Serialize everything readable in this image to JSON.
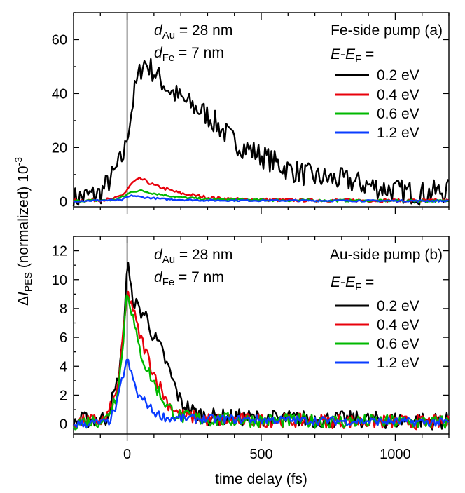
{
  "xlabel": "time delay (fs)",
  "ylabel": {
    "delta": "Δ",
    "italic": "I",
    "sub": "PES",
    "rest": " (normalized) 10",
    "sup": "-3"
  },
  "chart_data": [
    {
      "type": "line",
      "panel": "a",
      "xlim": [
        -200,
        1200
      ],
      "ylim": [
        -2,
        70
      ],
      "xticks": [
        0,
        500,
        1000
      ],
      "xtick_labels": [
        "",
        "",
        ""
      ],
      "yticks": [
        0,
        20,
        40,
        60
      ],
      "ytick_labels": [
        "0",
        "20",
        "40",
        "60"
      ],
      "zero_line_x": 0,
      "annotations": {
        "dau": {
          "d": "d",
          "sub": "Au",
          "text": " = 28 nm"
        },
        "dfe": {
          "d": "d",
          "sub": "Fe",
          "text": " =  7 nm"
        },
        "pump": "Fe-side pump  (a)",
        "energy": {
          "e1": "E",
          "minus": "-",
          "e2": "E",
          "sub": "F",
          "eq": " ="
        }
      },
      "series": [
        {
          "name": "0.2 eV",
          "color": "#000000",
          "anchors": [
            [
              -200,
              1
            ],
            [
              -100,
              3
            ],
            [
              -50,
              10
            ],
            [
              -10,
              18
            ],
            [
              0,
              25
            ],
            [
              10,
              30
            ],
            [
              30,
              42
            ],
            [
              60,
              52
            ],
            [
              100,
              48
            ],
            [
              150,
              42
            ],
            [
              200,
              38
            ],
            [
              300,
              32
            ],
            [
              400,
              22
            ],
            [
              500,
              17
            ],
            [
              600,
              12
            ],
            [
              700,
              9
            ],
            [
              800,
              8
            ],
            [
              900,
              6
            ],
            [
              1000,
              4
            ],
            [
              1100,
              3
            ],
            [
              1200,
              4
            ]
          ],
          "noise": 4.5
        },
        {
          "name": "0.4 eV",
          "color": "#e8000b",
          "anchors": [
            [
              -200,
              0.3
            ],
            [
              -50,
              0.8
            ],
            [
              -10,
              3
            ],
            [
              20,
              7
            ],
            [
              50,
              8.5
            ],
            [
              100,
              6
            ],
            [
              200,
              3
            ],
            [
              300,
              1.5
            ],
            [
              400,
              0.8
            ],
            [
              600,
              0.5
            ],
            [
              1200,
              0.3
            ]
          ],
          "noise": 0.6
        },
        {
          "name": "0.6 eV",
          "color": "#00b800",
          "anchors": [
            [
              -200,
              0.2
            ],
            [
              -50,
              0.5
            ],
            [
              -10,
              2
            ],
            [
              20,
              3.8
            ],
            [
              50,
              4
            ],
            [
              100,
              3
            ],
            [
              200,
              1.5
            ],
            [
              300,
              0.8
            ],
            [
              600,
              0.4
            ],
            [
              1200,
              0.2
            ]
          ],
          "noise": 0.4
        },
        {
          "name": "1.2 eV",
          "color": "#0a3cff",
          "anchors": [
            [
              -200,
              0.2
            ],
            [
              -20,
              0.5
            ],
            [
              0,
              1.6
            ],
            [
              20,
              2.2
            ],
            [
              60,
              1.5
            ],
            [
              150,
              0.8
            ],
            [
              300,
              0.4
            ],
            [
              1200,
              0.2
            ]
          ],
          "noise": 0.3
        }
      ]
    },
    {
      "type": "line",
      "panel": "b",
      "xlim": [
        -200,
        1200
      ],
      "ylim": [
        -0.7,
        13
      ],
      "xticks": [
        0,
        500,
        1000
      ],
      "xtick_labels": [
        "0",
        "500",
        "1000"
      ],
      "yticks": [
        0,
        2,
        4,
        6,
        8,
        10,
        12
      ],
      "ytick_labels": [
        "0",
        "2",
        "4",
        "6",
        "8",
        "10",
        "12"
      ],
      "zero_line_x": 0,
      "annotations": {
        "dau": {
          "d": "d",
          "sub": "Au",
          "text": " = 28 nm"
        },
        "dfe": {
          "d": "d",
          "sub": "Fe",
          "text": " =   7 nm"
        },
        "pump": "Au-side pump (b)",
        "energy": {
          "e1": "E",
          "minus": "-",
          "e2": "E",
          "sub": "F",
          "eq": " ="
        }
      },
      "series": [
        {
          "name": "0.2 eV",
          "color": "#000000",
          "anchors": [
            [
              -200,
              0.2
            ],
            [
              -80,
              0.4
            ],
            [
              -40,
              2.5
            ],
            [
              -20,
              5
            ],
            [
              -5,
              9
            ],
            [
              0,
              11.5
            ],
            [
              15,
              9
            ],
            [
              40,
              8
            ],
            [
              70,
              7.5
            ],
            [
              100,
              6
            ],
            [
              130,
              5
            ],
            [
              160,
              3.5
            ],
            [
              200,
              1.5
            ],
            [
              250,
              0.8
            ],
            [
              300,
              0.5
            ],
            [
              500,
              0.4
            ],
            [
              1200,
              0.2
            ]
          ],
          "noise": 0.6
        },
        {
          "name": "0.4 eV",
          "color": "#e8000b",
          "anchors": [
            [
              -200,
              0.1
            ],
            [
              -80,
              0.3
            ],
            [
              -40,
              2
            ],
            [
              -20,
              5
            ],
            [
              0,
              9
            ],
            [
              15,
              8.5
            ],
            [
              40,
              6.5
            ],
            [
              70,
              5
            ],
            [
              100,
              3.5
            ],
            [
              150,
              1.5
            ],
            [
              200,
              0.6
            ],
            [
              300,
              0.3
            ],
            [
              1200,
              0.1
            ]
          ],
          "noise": 0.5
        },
        {
          "name": "0.6 eV",
          "color": "#00b800",
          "anchors": [
            [
              -200,
              0.1
            ],
            [
              -80,
              0.3
            ],
            [
              -40,
              2
            ],
            [
              -20,
              4.5
            ],
            [
              0,
              9.5
            ],
            [
              15,
              8
            ],
            [
              40,
              5.5
            ],
            [
              70,
              4
            ],
            [
              100,
              2.8
            ],
            [
              150,
              1.2
            ],
            [
              200,
              0.5
            ],
            [
              300,
              0.3
            ],
            [
              1200,
              0.1
            ]
          ],
          "noise": 0.5
        },
        {
          "name": "1.2 eV",
          "color": "#0a3cff",
          "anchors": [
            [
              -200,
              0
            ],
            [
              -70,
              0.1
            ],
            [
              -40,
              1.2
            ],
            [
              -20,
              3
            ],
            [
              0,
              4.5
            ],
            [
              15,
              3.5
            ],
            [
              40,
              2
            ],
            [
              70,
              1.5
            ],
            [
              100,
              0.8
            ],
            [
              150,
              0.4
            ],
            [
              1200,
              0.1
            ]
          ],
          "noise": 0.3
        }
      ]
    }
  ]
}
